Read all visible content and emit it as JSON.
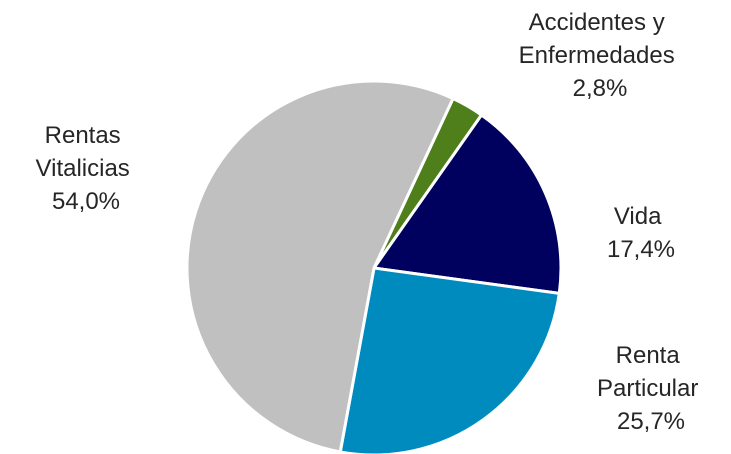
{
  "chart_data": {
    "type": "pie",
    "start_angle_deg": 25,
    "direction": "clockwise",
    "slices": [
      {
        "name_lines": [
          "Accidentes y",
          "Enfermedades"
        ],
        "value": 2.8,
        "label": "2,8%",
        "color": "#4e7f1a"
      },
      {
        "name_lines": [
          "Vida"
        ],
        "value": 17.4,
        "label": "17,4%",
        "color": "#00005e"
      },
      {
        "name_lines": [
          "Renta",
          "Particular"
        ],
        "value": 25.7,
        "label": "25,7%",
        "color": "#008bbf"
      },
      {
        "name_lines": [
          "Rentas",
          "Vitalicias"
        ],
        "value": 54.0,
        "label": "54,0%",
        "color": "#c0c0c0"
      }
    ]
  }
}
